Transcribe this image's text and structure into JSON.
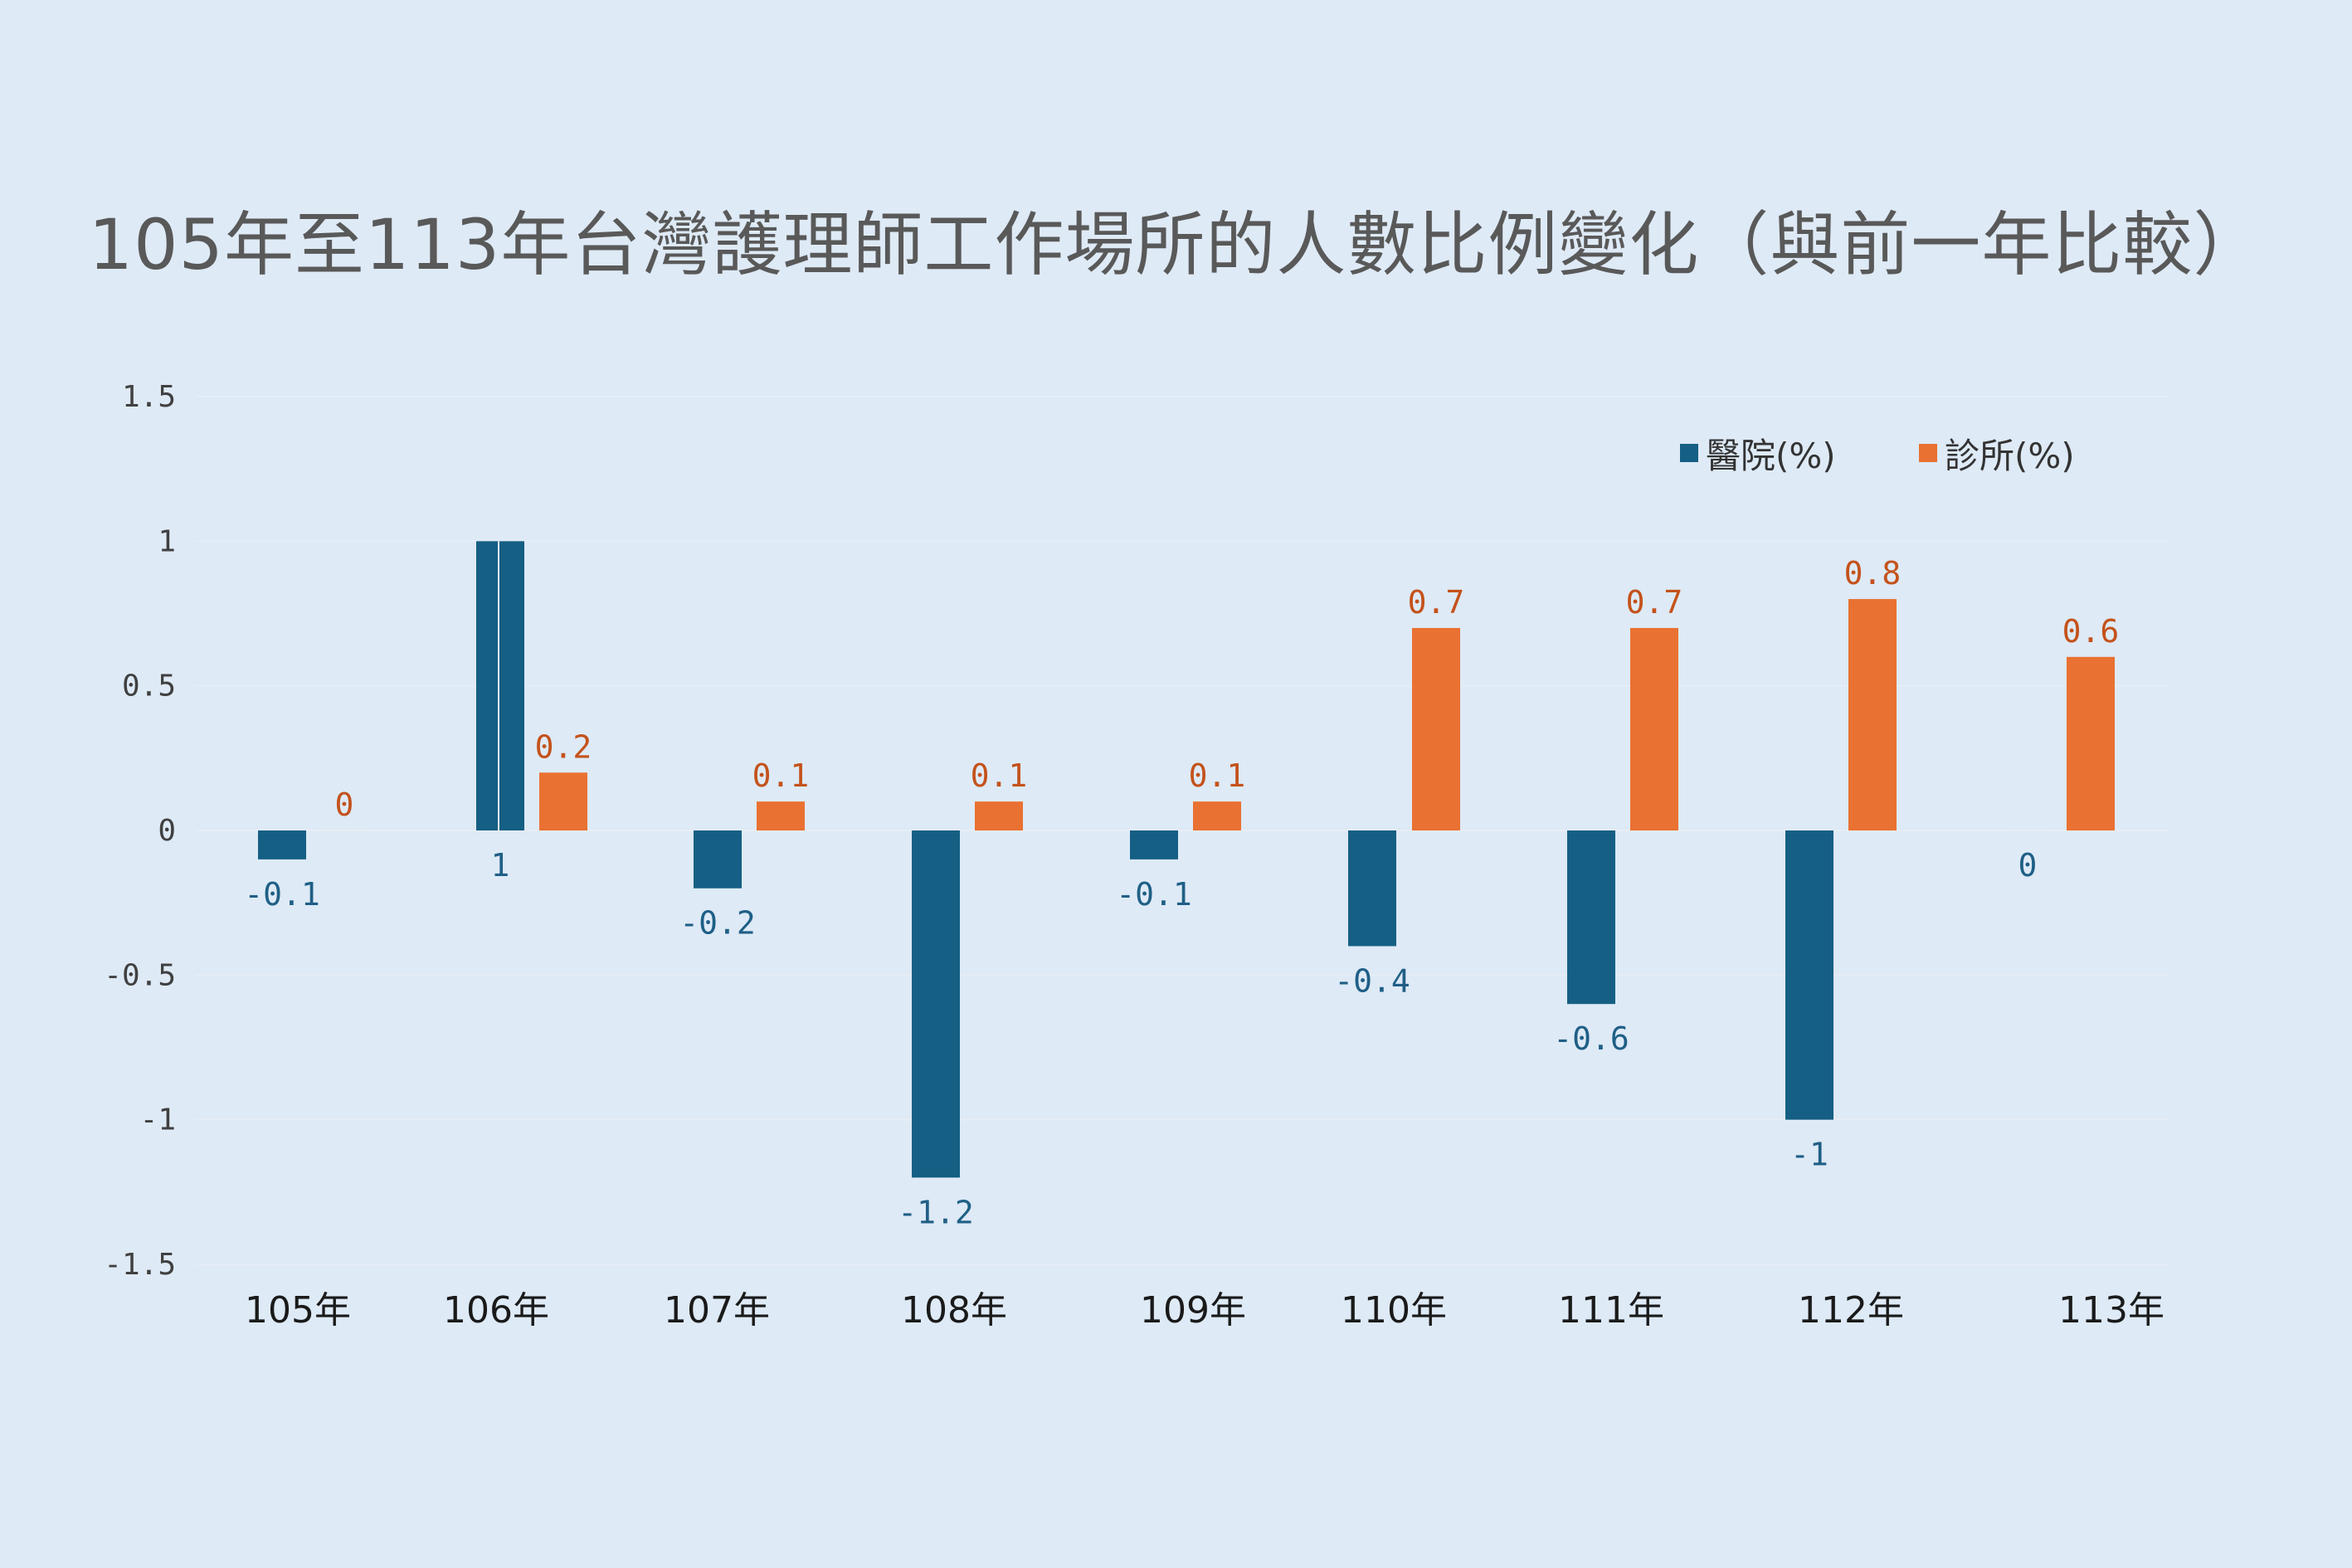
{
  "title": "105年至113年台灣護理師工作場所的人數比例變化（與前一年比較）",
  "colors": {
    "hospital": "#155f84",
    "clinic": "#e97132",
    "hospital_label": "#1f5f86",
    "clinic_label": "#c4521b",
    "background": "#deeaf6",
    "grid": "#e6edf5"
  },
  "chart_data": {
    "type": "bar",
    "title": "105年至113年台灣護理師工作場所的人數比例變化（與前一年比較）",
    "categories": [
      "105年",
      "106年",
      "107年",
      "108年",
      "109年",
      "110年",
      "111年",
      "112年",
      "113年"
    ],
    "series": [
      {
        "name": "醫院(%)",
        "values": [
          -0.1,
          1,
          -0.2,
          -1.2,
          -0.1,
          -0.4,
          -0.6,
          -1,
          0
        ]
      },
      {
        "name": "診所(%)",
        "values": [
          0,
          0.2,
          0.1,
          0.1,
          0.1,
          0.7,
          0.7,
          0.8,
          0.6
        ]
      }
    ],
    "yticks": [
      "1.5",
      "1",
      "0.5",
      "0",
      "-0.5",
      "-1",
      "-1.5"
    ],
    "ylim": [
      -1.5,
      1.5
    ],
    "grid": true,
    "legend": "top-right",
    "data_labels": {
      "hospital": [
        "-0.1",
        "1",
        "-0.2",
        "-1.2",
        "-0.1",
        "-0.4",
        "-0.6",
        "-1",
        "0"
      ],
      "clinic": [
        "0",
        "0.2",
        "0.1",
        "0.1",
        "0.1",
        "0.7",
        "0.7",
        "0.8",
        "0.6"
      ]
    }
  }
}
